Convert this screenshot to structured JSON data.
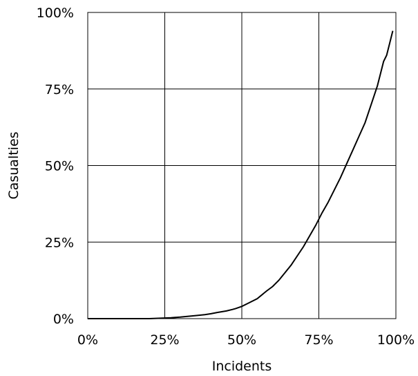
{
  "chart_data": {
    "type": "line",
    "xlabel": "Incidents",
    "ylabel": "Casualties",
    "xlim": [
      0,
      100
    ],
    "ylim": [
      0,
      100
    ],
    "x_ticks": [
      0,
      25,
      50,
      75,
      100
    ],
    "y_ticks": [
      0,
      25,
      50,
      75,
      100
    ],
    "x_tick_labels": [
      "0%",
      "25%",
      "50%",
      "75%",
      "100%"
    ],
    "y_tick_labels": [
      "0%",
      "25%",
      "50%",
      "75%",
      "100%"
    ],
    "grid": true,
    "legend": "none",
    "series": [
      {
        "color": "#000000",
        "x": [
          0,
          10,
          20,
          27,
          30,
          35,
          38,
          40,
          42,
          45,
          47,
          48,
          50,
          52,
          55,
          58,
          60,
          62,
          64,
          66,
          68,
          70,
          72,
          74,
          76,
          78,
          80,
          82,
          84,
          86,
          88,
          90,
          92,
          94,
          95,
          96,
          97,
          98,
          99
        ],
        "y": [
          0,
          0,
          0,
          0.3,
          0.5,
          1,
          1.3,
          1.6,
          2,
          2.5,
          3,
          3.3,
          4,
          5,
          6.5,
          9,
          10.5,
          12.5,
          15,
          17.5,
          20.5,
          23.5,
          27,
          30.5,
          34.5,
          38,
          42,
          46,
          50.5,
          55,
          59.5,
          64,
          70,
          76,
          80,
          84,
          86,
          90,
          94
        ]
      }
    ]
  }
}
